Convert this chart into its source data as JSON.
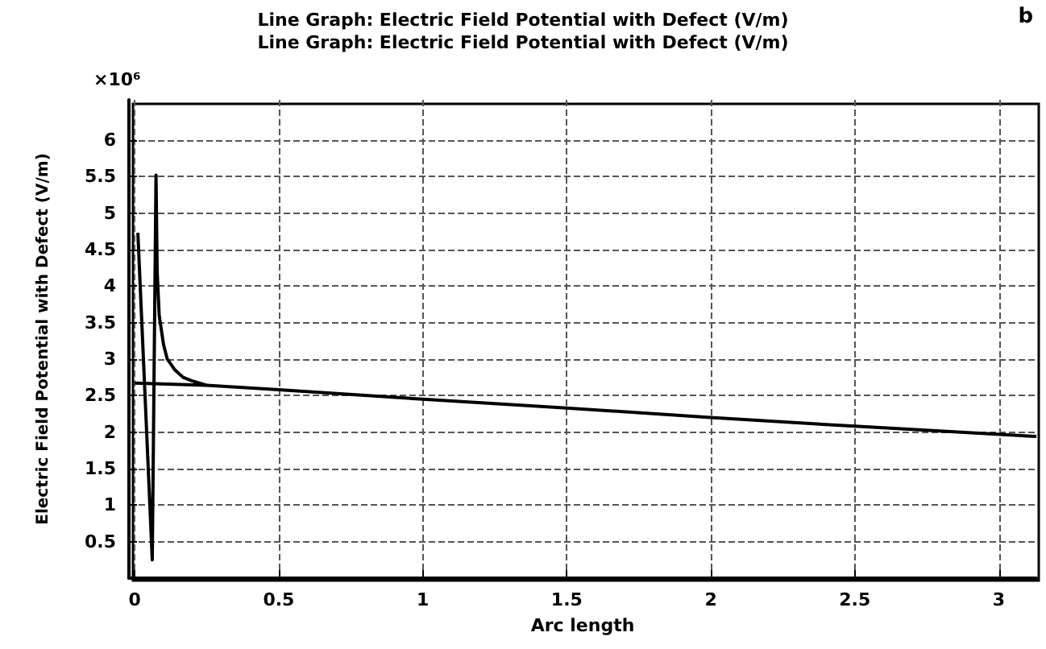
{
  "chart_data": {
    "type": "line",
    "title": "Line Graph: Electric Field Potential with Defect (V/m)",
    "subtitle": "Line Graph: Electric Field Potential with Defect (V/m)",
    "xlabel": "Arc length",
    "ylabel": "Electric Field Potential with Defect (V/m)",
    "annotations": [
      "×10⁶",
      "b"
    ],
    "series": [
      {
        "color": "#000000",
        "x": [
          0,
          0.25,
          0.5,
          1,
          1.5,
          2,
          2.5,
          3.13
        ],
        "values": [
          2.67,
          2.64,
          2.58,
          2.45,
          2.33,
          2.2,
          2.08,
          1.94
        ]
      },
      {
        "color": "#000000",
        "x": [
          0.011,
          0.061,
          0.074,
          0.078,
          0.085,
          0.1,
          0.113,
          0.14,
          0.168,
          0.2,
          0.25
        ],
        "values": [
          4.73,
          0.25,
          5.52,
          4.2,
          3.6,
          3.2,
          3.0,
          2.85,
          2.75,
          2.7,
          2.64
        ]
      }
    ],
    "xlim": [
      -0.02,
      3.13
    ],
    "ylim": [
      0,
      6.55
    ],
    "xticks": [
      0,
      0.5,
      1,
      1.5,
      2,
      2.5,
      3
    ],
    "yticks": [
      0.5,
      1,
      1.5,
      2,
      2.5,
      3,
      3.5,
      4,
      4.5,
      5,
      5.5,
      6
    ],
    "grid": true,
    "line_style": "solid",
    "marker": "none"
  }
}
